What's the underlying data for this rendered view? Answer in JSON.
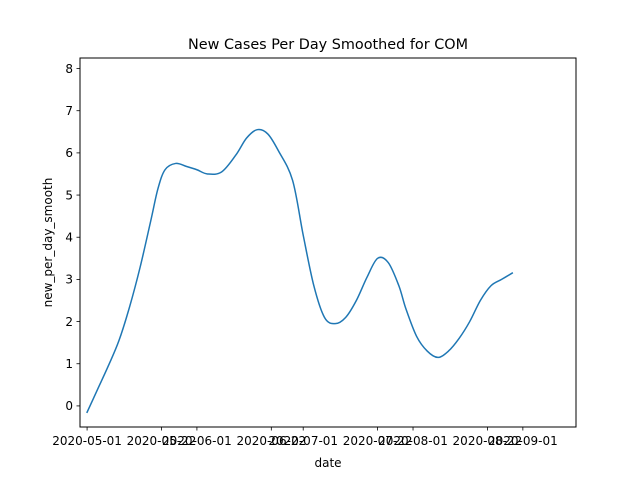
{
  "chart_data": {
    "type": "line",
    "title": "New Cases Per Day Smoothed for COM",
    "xlabel": "date",
    "ylabel": "new_per_day_smooth",
    "ylim": [
      -0.5,
      8.25
    ],
    "xlim": [
      "2020-04-29",
      "2020-09-16"
    ],
    "grid": false,
    "y_ticks": [
      0,
      1,
      2,
      3,
      4,
      5,
      6,
      7,
      8
    ],
    "x_ticks": [
      "2020-05-01",
      "2020-05-22",
      "2020-06-01",
      "2020-06-22",
      "2020-07-01",
      "2020-07-22",
      "2020-08-01",
      "2020-08-22",
      "2020-09-01"
    ],
    "line_color": "#1f77b4",
    "series": [
      {
        "name": "",
        "x": [
          "2020-05-01",
          "2020-05-04",
          "2020-05-07",
          "2020-05-10",
          "2020-05-13",
          "2020-05-16",
          "2020-05-19",
          "2020-05-21",
          "2020-05-23",
          "2020-05-26",
          "2020-05-29",
          "2020-06-01",
          "2020-06-04",
          "2020-06-08",
          "2020-06-12",
          "2020-06-15",
          "2020-06-18",
          "2020-06-21",
          "2020-06-24",
          "2020-06-28",
          "2020-07-01",
          "2020-07-04",
          "2020-07-07",
          "2020-07-10",
          "2020-07-13",
          "2020-07-16",
          "2020-07-19",
          "2020-07-22",
          "2020-07-25",
          "2020-07-28",
          "2020-07-30",
          "2020-08-02",
          "2020-08-05",
          "2020-08-08",
          "2020-08-11",
          "2020-08-14",
          "2020-08-17",
          "2020-08-20",
          "2020-08-23",
          "2020-08-26",
          "2020-08-29",
          "2020-09-01",
          "2020-09-04",
          "2020-09-07",
          "2020-09-11"
        ],
        "y": [
          -0.15,
          0.4,
          0.95,
          1.55,
          2.35,
          3.3,
          4.4,
          5.15,
          5.6,
          5.75,
          5.68,
          5.6,
          5.5,
          5.55,
          5.95,
          6.35,
          6.55,
          6.45,
          6.05,
          5.35,
          4.05,
          2.85,
          2.1,
          1.95,
          2.1,
          2.5,
          3.05,
          3.5,
          3.4,
          2.85,
          2.3,
          1.65,
          1.3,
          1.15,
          1.3,
          1.6,
          2.0,
          2.5,
          2.85,
          3.0,
          3.15,
          null,
          null,
          null,
          null
        ]
      }
    ]
  }
}
